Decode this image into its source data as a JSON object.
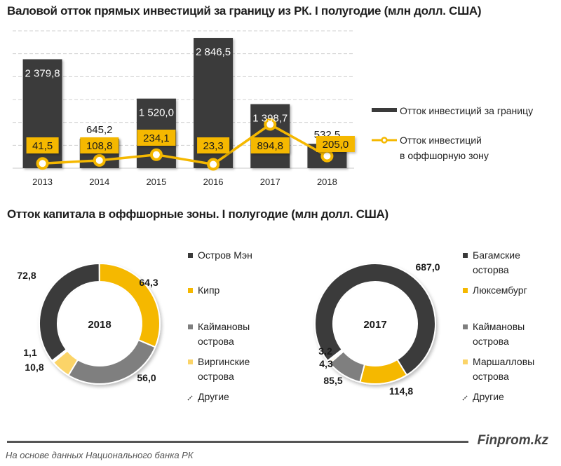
{
  "chart_data": [
    {
      "type": "bar",
      "title": "Валовой отток прямых инвестиций за границу из РК. I полугодие (млн долл. США)",
      "xlabel": "",
      "ylabel": "",
      "categories": [
        "2013",
        "2014",
        "2015",
        "2016",
        "2017",
        "2018"
      ],
      "ylim": [
        0,
        3000
      ],
      "grid": true,
      "legend_position": "right",
      "series": [
        {
          "name": "Отток инвестиций за границу",
          "kind": "bar",
          "color": "#3a3a3a",
          "values": [
            2379.8,
            645.2,
            1520.0,
            2846.5,
            1398.7,
            532.5
          ],
          "labels": [
            "2 379,8",
            "645,2",
            "1 520,0",
            "2 846,5",
            "1 398,7",
            "532,5"
          ]
        },
        {
          "name": "Отток инвестиций в оффшорную зону",
          "kind": "line",
          "color": "#f5b800",
          "values": [
            41.5,
            108.8,
            234.1,
            23.3,
            894.8,
            205.0
          ],
          "labels": [
            "41,5",
            "108,8",
            "234,1",
            "23,3",
            "894,8",
            "205,0"
          ]
        }
      ],
      "legend": [
        "Отток инвестиций за границу",
        "Отток инвестиций",
        "в оффшорную зону"
      ]
    },
    {
      "type": "pie",
      "title": "Отток капитала в оффшорные зоны. I полугодие (млн долл. США)",
      "center_label": "2018",
      "slices": [
        {
          "name": "Остров Мэн",
          "name_lines": [
            "Остров Мэн"
          ],
          "value": 72.8,
          "label": "72,8",
          "color": "#3a3a3a"
        },
        {
          "name": "Кипр",
          "name_lines": [
            "Кипр"
          ],
          "value": 64.3,
          "label": "64,3",
          "color": "#f5b800"
        },
        {
          "name": "Каймановы острова",
          "name_lines": [
            "Каймановы",
            "острова"
          ],
          "value": 56.0,
          "label": "56,0",
          "color": "#7f7f7f"
        },
        {
          "name": "Виргинские острова",
          "name_lines": [
            "Виргинские",
            "острова"
          ],
          "value": 10.8,
          "label": "10,8",
          "color": "#fbd468"
        },
        {
          "name": "Другие",
          "name_lines": [
            "Другие"
          ],
          "value": 1.1,
          "label": "1,1",
          "color": "#ffffff"
        }
      ]
    },
    {
      "type": "pie",
      "title": "Отток капитала в оффшорные зоны. I полугодие (млн долл. США)",
      "center_label": "2017",
      "slices": [
        {
          "name": "Багамские осторва",
          "name_lines": [
            "Багамские",
            "осторва"
          ],
          "value": 687.0,
          "label": "687,0",
          "color": "#3a3a3a"
        },
        {
          "name": "Люксембург",
          "name_lines": [
            "Люксембург"
          ],
          "value": 114.8,
          "label": "114,8",
          "color": "#f5b800"
        },
        {
          "name": "Каймановы острова",
          "name_lines": [
            "Каймановы",
            "острова"
          ],
          "value": 85.5,
          "label": "85,5",
          "color": "#7f7f7f"
        },
        {
          "name": "Маршалловы острова",
          "name_lines": [
            "Маршалловы",
            "острова"
          ],
          "value": 4.3,
          "label": "4,3",
          "color": "#fbd468"
        },
        {
          "name": "Другие",
          "name_lines": [
            "Другие"
          ],
          "value": 3.2,
          "label": "3,2",
          "color": "#ffffff"
        }
      ]
    }
  ],
  "titles": {
    "bar": "Валовой отток прямых инвестиций за границу из РК. I полугодие (млн долл. США)",
    "donuts": "Отток капитала в оффшорные зоны. I полугодие (млн долл. США)"
  },
  "footer": {
    "brand": "Finprom.kz",
    "source": "На основе данных Национального  банка РК"
  }
}
